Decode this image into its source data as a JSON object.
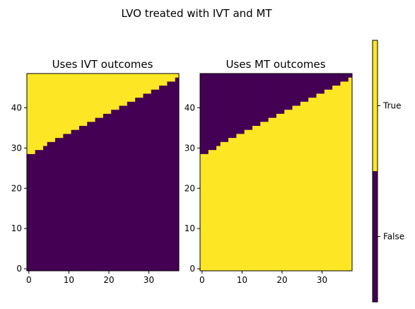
{
  "figure": {
    "title": "LVO treated with IVT and MT"
  },
  "chart_data": [
    {
      "type": "heatmap",
      "title": "Uses IVT outcomes",
      "xlabel": "",
      "ylabel": "",
      "xlim": [
        -0.5,
        37.5
      ],
      "ylim": [
        -0.5,
        48.5
      ],
      "x_ticks": [
        0,
        10,
        20,
        30
      ],
      "y_ticks": [
        0,
        10,
        20,
        30,
        40
      ],
      "columns": 38,
      "rows": 49,
      "value_true": true,
      "boundary_first_true_row": [
        29,
        29,
        30,
        30,
        31,
        32,
        32,
        33,
        33,
        34,
        34,
        35,
        35,
        36,
        36,
        37,
        37,
        38,
        38,
        39,
        39,
        40,
        40,
        41,
        41,
        42,
        42,
        43,
        43,
        44,
        44,
        45,
        45,
        46,
        46,
        47,
        47,
        48
      ]
    },
    {
      "type": "heatmap",
      "title": "Uses MT outcomes",
      "xlabel": "",
      "ylabel": "",
      "xlim": [
        -0.5,
        37.5
      ],
      "ylim": [
        -0.5,
        48.5
      ],
      "x_ticks": [
        0,
        10,
        20,
        30
      ],
      "y_ticks": [
        0,
        10,
        20,
        30,
        40
      ],
      "columns": 38,
      "rows": 49,
      "value_true": false,
      "boundary_first_true_row": [
        29,
        29,
        30,
        30,
        31,
        32,
        32,
        33,
        33,
        34,
        34,
        35,
        35,
        36,
        36,
        37,
        37,
        38,
        38,
        39,
        39,
        40,
        40,
        41,
        41,
        42,
        42,
        43,
        43,
        44,
        44,
        45,
        45,
        46,
        46,
        47,
        47,
        48
      ]
    }
  ],
  "colorbar": {
    "labels": [
      "False",
      "True"
    ],
    "colors": {
      "false": "#440154",
      "true": "#fde725"
    }
  }
}
